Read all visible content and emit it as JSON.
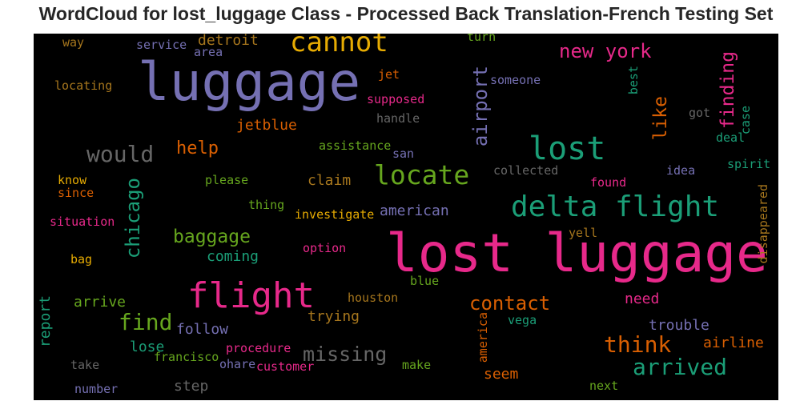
{
  "chart_data": {
    "type": "wordcloud",
    "title": "WordCloud for lost_luggage Class - Processed Back Translation-French Testing Set",
    "background": "#000000",
    "colormap": "Dark2",
    "words": [
      {
        "text": "lost luggage",
        "color": "#e7298a"
      },
      {
        "text": "luggage",
        "color": "#7570b3"
      },
      {
        "text": "flight",
        "color": "#e7298a"
      },
      {
        "text": "lost",
        "color": "#1b9e77"
      },
      {
        "text": "delta flight",
        "color": "#1b9e77"
      },
      {
        "text": "cannot",
        "color": "#e6ab02"
      },
      {
        "text": "locate",
        "color": "#66a61e"
      },
      {
        "text": "would",
        "color": "#666666"
      },
      {
        "text": "arrived",
        "color": "#1b9e77"
      },
      {
        "text": "think",
        "color": "#d95f02"
      },
      {
        "text": "find",
        "color": "#66a61e"
      },
      {
        "text": "missing",
        "color": "#666666"
      },
      {
        "text": "contact",
        "color": "#d95f02"
      },
      {
        "text": "new york",
        "color": "#e7298a"
      },
      {
        "text": "airport",
        "color": "#7570b3"
      },
      {
        "text": "chicago",
        "color": "#1b9e77"
      },
      {
        "text": "baggage",
        "color": "#66a61e"
      },
      {
        "text": "finding",
        "color": "#e7298a"
      },
      {
        "text": "like",
        "color": "#d95f02"
      },
      {
        "text": "help",
        "color": "#d95f02"
      },
      {
        "text": "jetblue",
        "color": "#d95f02"
      },
      {
        "text": "american",
        "color": "#7570b3"
      },
      {
        "text": "detroit",
        "color": "#a6761d"
      },
      {
        "text": "trouble",
        "color": "#7570b3"
      },
      {
        "text": "airline",
        "color": "#d95f02"
      },
      {
        "text": "need",
        "color": "#e7298a"
      },
      {
        "text": "claim",
        "color": "#a6761d"
      },
      {
        "text": "trying",
        "color": "#a6761d"
      },
      {
        "text": "coming",
        "color": "#1b9e77"
      },
      {
        "text": "follow",
        "color": "#7570b3"
      },
      {
        "text": "arrive",
        "color": "#66a61e"
      },
      {
        "text": "report",
        "color": "#1b9e77"
      },
      {
        "text": "step",
        "color": "#666666"
      },
      {
        "text": "lose",
        "color": "#1b9e77"
      },
      {
        "text": "seem",
        "color": "#d95f02"
      },
      {
        "text": "disappeared",
        "color": "#a6761d"
      },
      {
        "text": "service",
        "color": "#7570b3"
      },
      {
        "text": "way",
        "color": "#a6761d"
      },
      {
        "text": "area",
        "color": "#7570b3"
      },
      {
        "text": "turn",
        "color": "#66a61e"
      },
      {
        "text": "locating",
        "color": "#a6761d"
      },
      {
        "text": "jet",
        "color": "#d95f02"
      },
      {
        "text": "someone",
        "color": "#7570b3"
      },
      {
        "text": "best",
        "color": "#1b9e77"
      },
      {
        "text": "supposed",
        "color": "#e7298a"
      },
      {
        "text": "handle",
        "color": "#666666"
      },
      {
        "text": "got",
        "color": "#666666"
      },
      {
        "text": "case",
        "color": "#1b9e77"
      },
      {
        "text": "deal",
        "color": "#1b9e77"
      },
      {
        "text": "assistance",
        "color": "#66a61e"
      },
      {
        "text": "san",
        "color": "#7570b3"
      },
      {
        "text": "spirit",
        "color": "#1b9e77"
      },
      {
        "text": "know",
        "color": "#e6ab02"
      },
      {
        "text": "please",
        "color": "#66a61e"
      },
      {
        "text": "collected",
        "color": "#666666"
      },
      {
        "text": "found",
        "color": "#e7298a"
      },
      {
        "text": "idea",
        "color": "#7570b3"
      },
      {
        "text": "since",
        "color": "#d95f02"
      },
      {
        "text": "thing",
        "color": "#66a61e"
      },
      {
        "text": "situation",
        "color": "#e7298a"
      },
      {
        "text": "investigate",
        "color": "#e6ab02"
      },
      {
        "text": "yell",
        "color": "#a6761d"
      },
      {
        "text": "option",
        "color": "#e7298a"
      },
      {
        "text": "bag",
        "color": "#e6ab02"
      },
      {
        "text": "blue",
        "color": "#66a61e"
      },
      {
        "text": "houston",
        "color": "#a6761d"
      },
      {
        "text": "vega",
        "color": "#1b9e77"
      },
      {
        "text": "america",
        "color": "#d95f02"
      },
      {
        "text": "procedure",
        "color": "#e7298a"
      },
      {
        "text": "francisco",
        "color": "#66a61e"
      },
      {
        "text": "take",
        "color": "#666666"
      },
      {
        "text": "ohare",
        "color": "#7570b3"
      },
      {
        "text": "customer",
        "color": "#e7298a"
      },
      {
        "text": "make",
        "color": "#66a61e"
      },
      {
        "text": "next",
        "color": "#66a61e"
      },
      {
        "text": "number",
        "color": "#7570b3"
      }
    ]
  }
}
